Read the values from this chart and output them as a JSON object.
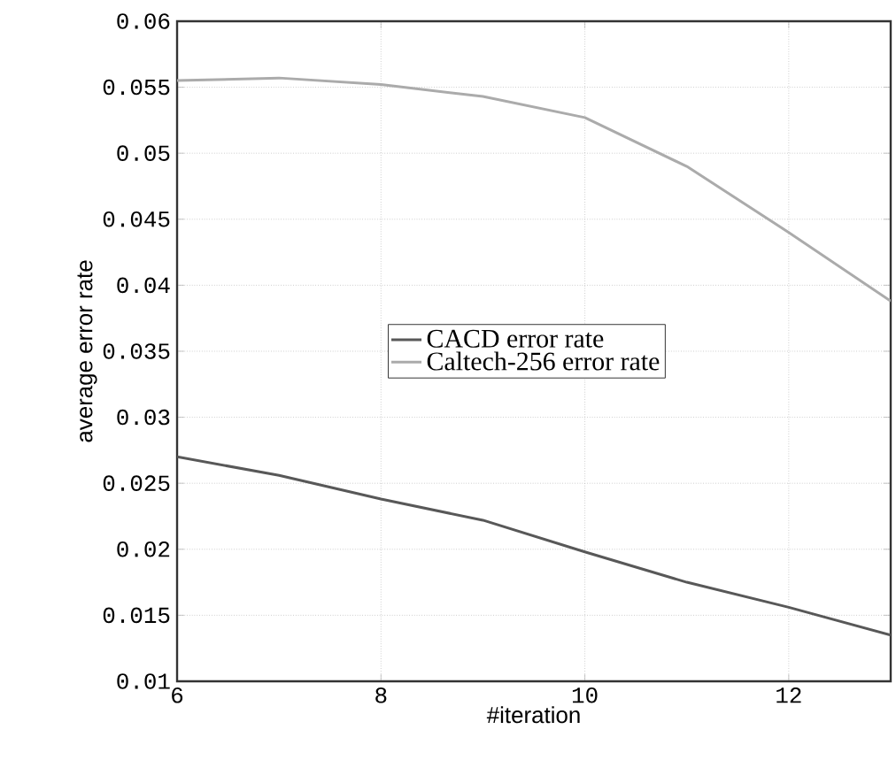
{
  "chart_data": {
    "type": "line",
    "xlabel": "#iteration",
    "ylabel": "average error rate",
    "x": [
      6,
      7,
      8,
      9,
      10,
      11,
      12,
      13
    ],
    "series": [
      {
        "name": "CACD error rate",
        "color": "#585858",
        "values": [
          0.027,
          0.0256,
          0.0238,
          0.0222,
          0.0198,
          0.0175,
          0.0156,
          0.0135
        ]
      },
      {
        "name": "Caltech-256 error rate",
        "color": "#ababab",
        "values": [
          0.0555,
          0.0557,
          0.0552,
          0.0543,
          0.0527,
          0.049,
          0.044,
          0.0388
        ]
      }
    ],
    "xlim": [
      6,
      13
    ],
    "xticks": [
      6,
      8,
      10,
      12
    ],
    "ylim": [
      0.01,
      0.06
    ],
    "yticks": [
      0.01,
      0.015,
      0.02,
      0.025,
      0.03,
      0.035,
      0.04,
      0.045,
      0.05,
      0.055,
      0.06
    ],
    "grid": true,
    "legend": "center",
    "marker": "none",
    "line_style": "solid"
  }
}
